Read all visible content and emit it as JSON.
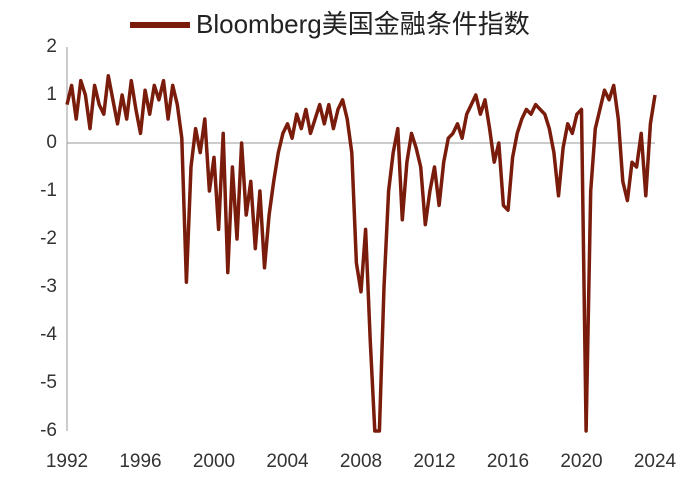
{
  "chart_data": {
    "type": "line",
    "series": [
      {
        "name": "Bloomberg美国金融条件指数",
        "color": "#7a1c0c",
        "x": [
          1992,
          1992.25,
          1992.5,
          1992.75,
          1993,
          1993.25,
          1993.5,
          1993.75,
          1994,
          1994.25,
          1994.5,
          1994.75,
          1995,
          1995.25,
          1995.5,
          1995.75,
          1996,
          1996.25,
          1996.5,
          1996.75,
          1997,
          1997.25,
          1997.5,
          1997.75,
          1998,
          1998.25,
          1998.5,
          1998.75,
          1999,
          1999.25,
          1999.5,
          1999.75,
          2000,
          2000.25,
          2000.5,
          2000.75,
          2001,
          2001.25,
          2001.5,
          2001.75,
          2002,
          2002.25,
          2002.5,
          2002.75,
          2003,
          2003.25,
          2003.5,
          2003.75,
          2004,
          2004.25,
          2004.5,
          2004.75,
          2005,
          2005.25,
          2005.5,
          2005.75,
          2006,
          2006.25,
          2006.5,
          2006.75,
          2007,
          2007.25,
          2007.5,
          2007.75,
          2008,
          2008.25,
          2008.5,
          2008.75,
          2009,
          2009.25,
          2009.5,
          2009.75,
          2010,
          2010.25,
          2010.5,
          2010.75,
          2011,
          2011.25,
          2011.5,
          2011.75,
          2012,
          2012.25,
          2012.5,
          2012.75,
          2013,
          2013.25,
          2013.5,
          2013.75,
          2014,
          2014.25,
          2014.5,
          2014.75,
          2015,
          2015.25,
          2015.5,
          2015.75,
          2016,
          2016.25,
          2016.5,
          2016.75,
          2017,
          2017.25,
          2017.5,
          2017.75,
          2018,
          2018.25,
          2018.5,
          2018.75,
          2019,
          2019.25,
          2019.5,
          2019.75,
          2020,
          2020.25,
          2020.5,
          2020.75,
          2021,
          2021.25,
          2021.5,
          2021.75,
          2022,
          2022.25,
          2022.5,
          2022.75,
          2023,
          2023.25,
          2023.5,
          2023.75,
          2024
        ],
        "values": [
          0.8,
          1.2,
          0.5,
          1.3,
          1.0,
          0.3,
          1.2,
          0.8,
          0.6,
          1.4,
          0.9,
          0.4,
          1.0,
          0.5,
          1.3,
          0.7,
          0.2,
          1.1,
          0.6,
          1.2,
          0.9,
          1.3,
          0.5,
          1.2,
          0.8,
          0.1,
          -2.9,
          -0.5,
          0.3,
          -0.2,
          0.5,
          -1.0,
          -0.3,
          -1.8,
          0.2,
          -2.7,
          -0.5,
          -2.0,
          0.0,
          -1.5,
          -0.8,
          -2.2,
          -1.0,
          -2.6,
          -1.5,
          -0.8,
          -0.2,
          0.2,
          0.4,
          0.1,
          0.6,
          0.3,
          0.7,
          0.2,
          0.5,
          0.8,
          0.4,
          0.8,
          0.3,
          0.7,
          0.9,
          0.5,
          -0.2,
          -2.5,
          -3.1,
          -1.8,
          -4.1,
          -6.0,
          -6.0,
          -3.0,
          -1.0,
          -0.2,
          0.3,
          -1.6,
          -0.4,
          0.2,
          -0.1,
          -0.5,
          -1.7,
          -1.0,
          -0.5,
          -1.3,
          -0.4,
          0.1,
          0.2,
          0.4,
          0.1,
          0.6,
          0.8,
          1.0,
          0.6,
          0.9,
          0.3,
          -0.4,
          0.0,
          -1.3,
          -1.4,
          -0.3,
          0.2,
          0.5,
          0.7,
          0.6,
          0.8,
          0.7,
          0.6,
          0.3,
          -0.2,
          -1.1,
          -0.1,
          0.4,
          0.2,
          0.6,
          0.7,
          -6.0,
          -1.0,
          0.3,
          0.7,
          1.1,
          0.9,
          1.2,
          0.5,
          -0.8,
          -1.2,
          -0.4,
          -0.5,
          0.2,
          -1.1,
          0.4,
          1.0
        ]
      }
    ],
    "xlim": [
      1992,
      2024
    ],
    "xticks": [
      1992,
      1996,
      2000,
      2004,
      2008,
      2012,
      2016,
      2020,
      2024
    ],
    "ylim": [
      -6,
      2
    ],
    "yticks": [
      -6,
      -5,
      -4,
      -3,
      -2,
      -1,
      0,
      1,
      2
    ]
  }
}
